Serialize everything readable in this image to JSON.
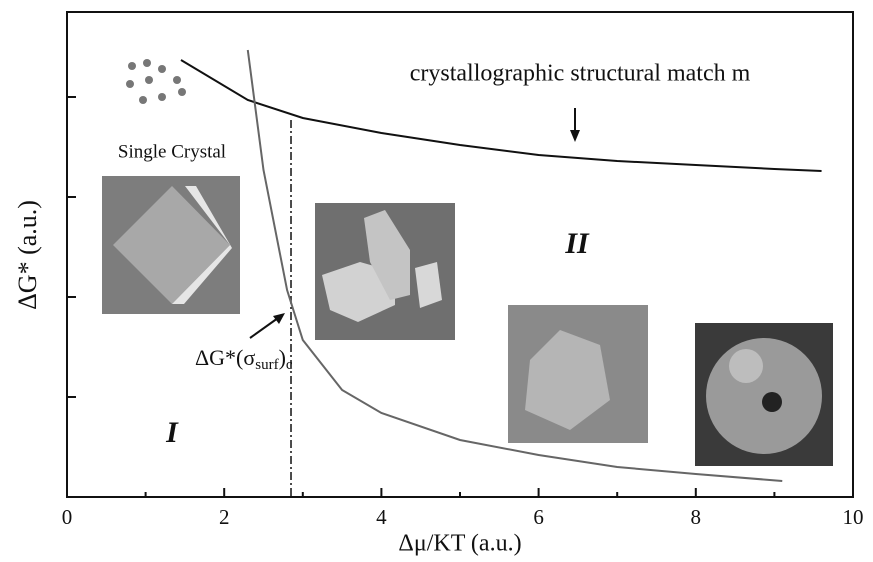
{
  "chart_data": {
    "type": "line",
    "xlabel": "Δμ/KT (a.u.)",
    "ylabel": "ΔG* (a.u.)",
    "xlim": [
      0,
      10
    ],
    "ylim": [
      0,
      4.85
    ],
    "xticks": [
      0,
      2,
      4,
      6,
      8,
      10
    ],
    "xminor": [
      1,
      3,
      5,
      7,
      9
    ],
    "yticks": [
      1,
      2,
      3,
      4
    ],
    "ytick_labels": false,
    "series": [
      {
        "name": "crystallographic structural match m",
        "color": "#111111",
        "x": [
          1.45,
          2.3,
          3,
          4,
          5,
          6,
          7,
          8,
          9,
          9.6
        ],
        "values": [
          4.37,
          3.97,
          3.79,
          3.64,
          3.52,
          3.42,
          3.36,
          3.32,
          3.28,
          3.26
        ]
      },
      {
        "color": "#666666",
        "x": [
          2.3,
          2.5,
          2.8,
          3,
          3.5,
          4,
          5,
          6,
          7,
          8,
          9.1
        ],
        "values": [
          4.47,
          3.27,
          2.07,
          1.57,
          1.07,
          0.84,
          0.57,
          0.42,
          0.3,
          0.23,
          0.16
        ]
      }
    ],
    "vline": 2.85,
    "annotation": [
      "ΔG*(σ",
      "surf",
      ")",
      "c"
    ],
    "labels": {
      "single_crystal": "Single Crystal",
      "region_1": "I",
      "region_2": "II"
    }
  }
}
